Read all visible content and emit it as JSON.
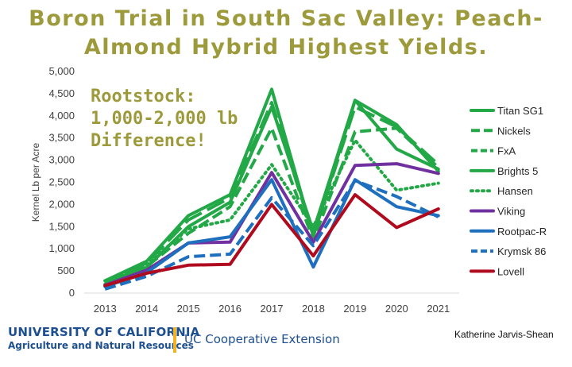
{
  "title": {
    "line1": "Boron Trial in South Sac Valley: Peach-",
    "line2": "Almond Hybrid Highest Yields."
  },
  "annotation": {
    "line1": "Rootstock:",
    "line2": "1,000-2,000 lb",
    "line3": "Difference!"
  },
  "footer": {
    "org_line1": "UNIVERSITY OF CALIFORNIA",
    "org_line2": "Agriculture and Natural Resources",
    "extension": "UC Cooperative Extension",
    "credit": "Katherine Jarvis-Shean"
  },
  "colors": {
    "title": "#9c9a3b",
    "green": "#22a846",
    "purple": "#7030a0",
    "blue": "#1f6fbf",
    "red": "#b00a1e",
    "brand_blue": "#1d4f91",
    "brand_gold": "#f0b323"
  },
  "chart_data": {
    "type": "line",
    "title": "Boron Trial in South Sac Valley: Peach-Almond Hybrid Highest Yields.",
    "xlabel": "",
    "ylabel": "Kernel Lb per Acre",
    "ylim": [
      0,
      5000
    ],
    "yticks": [
      0,
      500,
      1000,
      1500,
      2000,
      2500,
      3000,
      3500,
      4000,
      4500,
      5000
    ],
    "ytick_labels": [
      "0",
      "500",
      "1,000",
      "1,500",
      "2,000",
      "2,500",
      "3,000",
      "3,500",
      "4,000",
      "4,500",
      "5,000"
    ],
    "x": [
      "2013",
      "2014",
      "2015",
      "2016",
      "2017",
      "2018",
      "2019",
      "2020",
      "2021"
    ],
    "legend_position": "right",
    "grid": false,
    "series": [
      {
        "name": "Titan SG1",
        "color": "#22a846",
        "style": "solid",
        "values": [
          280,
          720,
          1750,
          2220,
          4600,
          1280,
          4350,
          3800,
          2750
        ]
      },
      {
        "name": "Nickels",
        "color": "#22a846",
        "style": "longdash",
        "values": [
          250,
          680,
          1650,
          2150,
          4300,
          1300,
          4200,
          3750,
          2900
        ]
      },
      {
        "name": "FxA",
        "color": "#22a846",
        "style": "dash",
        "values": [
          220,
          600,
          1350,
          1950,
          3720,
          1200,
          3640,
          3720,
          2830
        ]
      },
      {
        "name": "Brights 5",
        "color": "#22a846",
        "style": "solid",
        "values": [
          200,
          580,
          1500,
          2050,
          4200,
          1400,
          4350,
          3250,
          2800
        ]
      },
      {
        "name": "Hansen",
        "color": "#22a846",
        "style": "dot",
        "values": [
          280,
          650,
          1450,
          1650,
          2900,
          1500,
          3450,
          2320,
          2480
        ]
      },
      {
        "name": "Viking",
        "color": "#7030a0",
        "style": "solid",
        "values": [
          180,
          520,
          1130,
          1150,
          2720,
          1150,
          2880,
          2920,
          2700
        ]
      },
      {
        "name": "Rootpac-R",
        "color": "#1f6fbf",
        "style": "solid",
        "values": [
          150,
          460,
          1130,
          1270,
          2560,
          590,
          2560,
          1950,
          1750
        ]
      },
      {
        "name": "Krymsk 86",
        "color": "#1f6fbf",
        "style": "dash",
        "values": [
          90,
          380,
          820,
          880,
          2150,
          1070,
          2540,
          2180,
          1720
        ]
      },
      {
        "name": "Lovell",
        "color": "#b00a1e",
        "style": "solid",
        "values": [
          170,
          450,
          630,
          650,
          2000,
          840,
          2220,
          1480,
          1900
        ]
      }
    ]
  }
}
